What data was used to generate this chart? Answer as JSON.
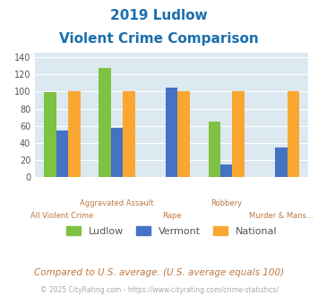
{
  "title_line1": "2019 Ludlow",
  "title_line2": "Violent Crime Comparison",
  "categories": [
    "All Violent Crime",
    "Aggravated Assault",
    "Rape",
    "Robbery",
    "Murder & Mans..."
  ],
  "ludlow": [
    99,
    128,
    0,
    65,
    0
  ],
  "vermont": [
    54,
    58,
    105,
    15,
    35
  ],
  "national": [
    100,
    100,
    100,
    100,
    100
  ],
  "color_ludlow": "#7dc242",
  "color_vermont": "#4472c4",
  "color_national": "#faa732",
  "ylim": [
    0,
    145
  ],
  "yticks": [
    0,
    20,
    40,
    60,
    80,
    100,
    120,
    140
  ],
  "background_color": "#dce9f0",
  "footer_text": "Compared to U.S. average. (U.S. average equals 100)",
  "copyright_text": "© 2025 CityRating.com - https://www.cityrating.com/crime-statistics/",
  "legend_labels": [
    "Ludlow",
    "Vermont",
    "National"
  ],
  "bar_width": 0.22
}
